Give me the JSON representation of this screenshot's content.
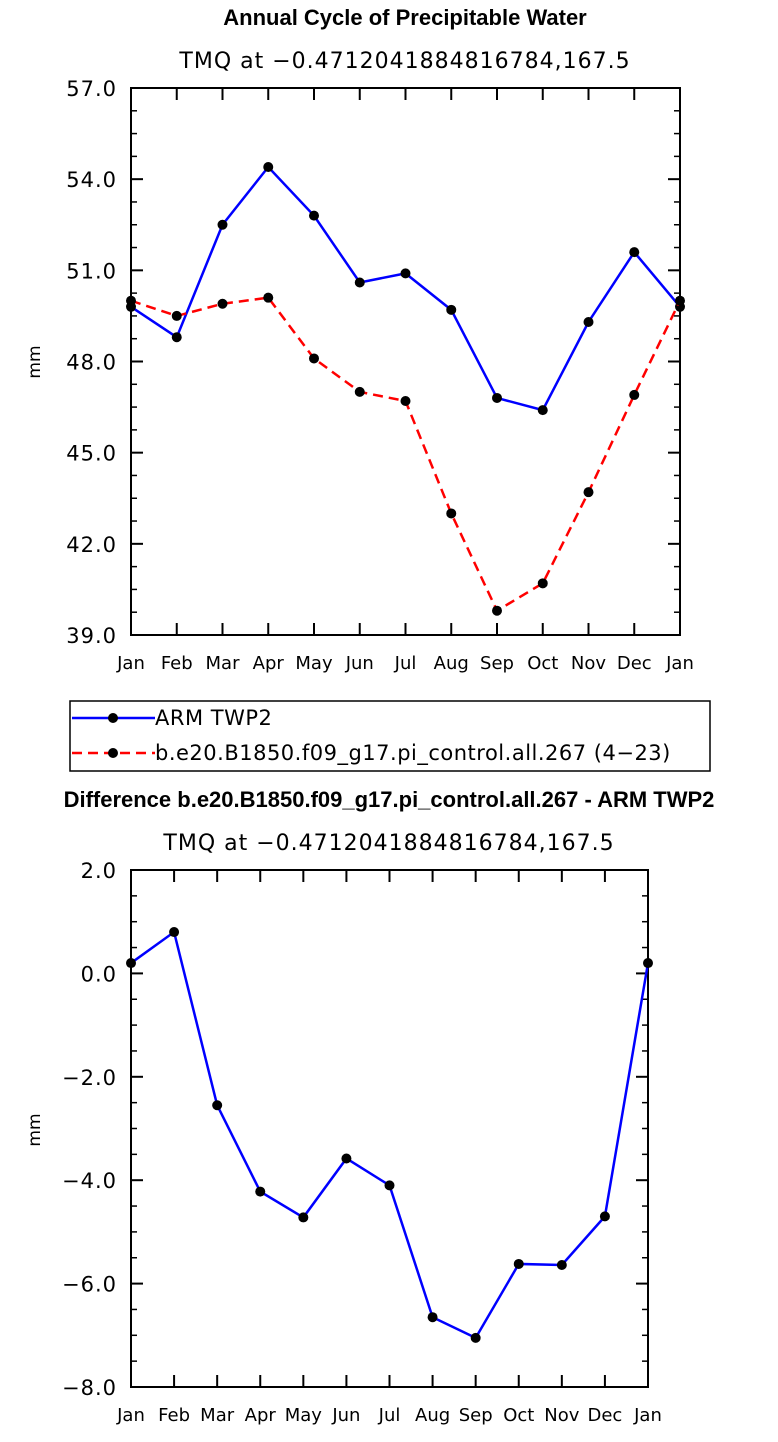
{
  "chart_data": [
    {
      "type": "line",
      "title": "Annual Cycle of Precipitable Water",
      "subtitle": "TMQ at −0.4712041884816784,167.5",
      "xlabel": "",
      "ylabel": "mm",
      "categories": [
        "Jan",
        "Feb",
        "Mar",
        "Apr",
        "May",
        "Jun",
        "Jul",
        "Aug",
        "Sep",
        "Oct",
        "Nov",
        "Dec",
        "Jan"
      ],
      "ylim": [
        39.0,
        57.0
      ],
      "yticks": [
        "39.0",
        "42.0",
        "45.0",
        "48.0",
        "51.0",
        "54.0",
        "57.0"
      ],
      "series": [
        {
          "name": "ARM TWP2",
          "color": "#0000ff",
          "dash": "solid",
          "values": [
            49.8,
            48.8,
            52.5,
            54.4,
            52.8,
            50.6,
            50.9,
            49.7,
            46.8,
            46.4,
            49.3,
            51.6,
            49.8
          ]
        },
        {
          "name": "b.e20.B1850.f09_g17.pi_control.all.267 (4−23)",
          "color": "#ff0000",
          "dash": "dashed",
          "values": [
            50.0,
            49.5,
            49.9,
            50.1,
            48.1,
            47.0,
            46.7,
            43.0,
            39.8,
            40.7,
            43.7,
            46.9,
            50.0
          ]
        }
      ],
      "legend": "bottom"
    },
    {
      "type": "line",
      "title": "Difference b.e20.B1850.f09_g17.pi_control.all.267 - ARM TWP2",
      "subtitle": "TMQ at −0.4712041884816784,167.5",
      "xlabel": "",
      "ylabel": "mm",
      "categories": [
        "Jan",
        "Feb",
        "Mar",
        "Apr",
        "May",
        "Jun",
        "Jul",
        "Aug",
        "Sep",
        "Oct",
        "Nov",
        "Dec",
        "Jan"
      ],
      "ylim": [
        -8.0,
        2.0
      ],
      "yticks": [
        "−8.0",
        "−6.0",
        "−4.0",
        "−2.0",
        "0.0",
        "2.0"
      ],
      "series": [
        {
          "color": "#0000ff",
          "dash": "solid",
          "values": [
            0.2,
            0.8,
            -2.55,
            -4.22,
            -4.72,
            -3.58,
            -4.1,
            -6.65,
            -7.05,
            -5.62,
            -5.64,
            -4.7,
            0.2
          ]
        }
      ]
    }
  ]
}
